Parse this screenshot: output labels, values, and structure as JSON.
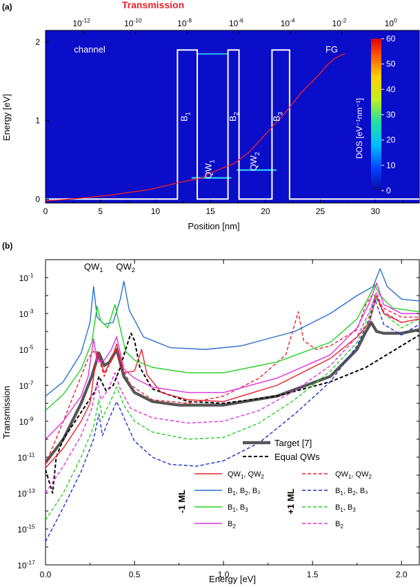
{
  "chart_data": [
    {
      "panel": "(a)",
      "type": "heatmap",
      "title": "Transmission",
      "xlabel": "Position [nm]",
      "ylabel": "Energy [eV]",
      "xlim": [
        0,
        34
      ],
      "ylim": [
        -0.05,
        2.15
      ],
      "x_ticks": [
        "0",
        "5",
        "10",
        "15",
        "20",
        "25",
        "30"
      ],
      "y_ticks": [
        "0",
        "1",
        "2"
      ],
      "top_axis_ticks": [
        {
          "base": "10",
          "exp": "-12"
        },
        {
          "base": "10",
          "exp": "-10"
        },
        {
          "base": "10",
          "exp": "-8"
        },
        {
          "base": "10",
          "exp": "-6"
        },
        {
          "base": "10",
          "exp": "-4"
        },
        {
          "base": "10",
          "exp": "-2"
        },
        {
          "base": "10",
          "exp": "0"
        }
      ],
      "top_axis_log_range": [
        -13.5,
        1
      ],
      "colorbar": {
        "label": "DOS [eV⁻¹nm⁻¹]",
        "min": 0,
        "max": 60,
        "ticks": [
          "0",
          "10",
          "20",
          "30",
          "40",
          "50",
          "60"
        ],
        "colors": [
          "#0a0aa0",
          "#0040ff",
          "#00c0ff",
          "#20e0a0",
          "#c0f020",
          "#ffd000",
          "#ff6000",
          "#e00000"
        ]
      },
      "region_labels": {
        "left": "channel",
        "right": "FG"
      },
      "band_profile": {
        "x": [
          0,
          12,
          12,
          13.8,
          13.8,
          16.6,
          16.6,
          17.6,
          17.6,
          20.6,
          20.6,
          22.2,
          22.2,
          34
        ],
        "energy": [
          0,
          0,
          1.9,
          1.9,
          0,
          0,
          1.9,
          1.9,
          0,
          0,
          1.9,
          1.9,
          0,
          0
        ]
      },
      "barriers": [
        {
          "label": "B",
          "sub": "1",
          "x": 12.9,
          "energy": 1.05
        },
        {
          "label": "B",
          "sub": "2",
          "x": 17.3,
          "energy": 1.05
        },
        {
          "label": "B",
          "sub": "3",
          "x": 21.3,
          "energy": 1.05
        }
      ],
      "wells": [
        {
          "label": "QW",
          "sub": "1",
          "x": 15.1,
          "energy": 0.38,
          "level": 0.27
        },
        {
          "label": "QW",
          "sub": "2",
          "x": 19.2,
          "energy": 0.48,
          "level": 0.37
        }
      ],
      "transmission_curve": {
        "color": "#e8202c",
        "log10_T": [
          -13.8,
          -12.5,
          -11,
          -9.5,
          -8.2,
          -7.4,
          -7.2,
          -6.6,
          -6.2,
          -5.6,
          -4.9,
          -4.2,
          -3.6,
          -2.9,
          -2.6,
          -2.3,
          -2.0,
          -1.9
        ],
        "energy": [
          -0.03,
          0.0,
          0.05,
          0.12,
          0.22,
          0.27,
          0.32,
          0.4,
          0.45,
          0.6,
          0.85,
          1.1,
          1.35,
          1.58,
          1.7,
          1.79,
          1.84,
          1.85
        ]
      }
    },
    {
      "panel": "(b)",
      "type": "line",
      "xlabel": "Energy [eV]",
      "ylabel": "Transmission",
      "xlim": [
        0,
        2.1
      ],
      "ylim_log10": [
        -17,
        0
      ],
      "x_ticks": [
        "0.0",
        "0.5",
        "1.0",
        "1.5",
        "2.0"
      ],
      "y_ticks": [
        {
          "base": "10",
          "exp": "-1"
        },
        {
          "base": "10",
          "exp": "-3"
        },
        {
          "base": "10",
          "exp": "-5"
        },
        {
          "base": "10",
          "exp": "-7"
        },
        {
          "base": "10",
          "exp": "-9"
        },
        {
          "base": "10",
          "exp": "-11"
        },
        {
          "base": "10",
          "exp": "-13"
        },
        {
          "base": "10",
          "exp": "-15"
        },
        {
          "base": "10",
          "exp": "-17"
        }
      ],
      "peak_labels": [
        {
          "label": "QW",
          "sub": "1",
          "x": 0.27,
          "log10_T": -0.55
        },
        {
          "label": "QW",
          "sub": "2",
          "x": 0.45,
          "log10_T": -0.55
        }
      ],
      "group_labels": {
        "solid": "-1 ML",
        "dashed": "+1 ML"
      },
      "legend_entries": [
        {
          "text": "QW",
          "sub1": "1",
          "sep": ", QW",
          "sub2": "2",
          "rest": ""
        },
        {
          "text": "B",
          "sub1": "1",
          "sep": ", B",
          "sub2": "2",
          "rest": ", B₃"
        },
        {
          "text": "B",
          "sub1": "1",
          "sep": ", B",
          "sub2": "3",
          "rest": ""
        },
        {
          "text": "B",
          "sub1": "2",
          "sep": "",
          "sub2": "",
          "rest": ""
        }
      ],
      "series": [
        {
          "name": "Target [7]",
          "style": "solid",
          "color": "#555555",
          "width": 4.2,
          "x": [
            0.0,
            0.1,
            0.2,
            0.26,
            0.3,
            0.33,
            0.36,
            0.4,
            0.44,
            0.5,
            0.6,
            0.75,
            1.0,
            1.3,
            1.6,
            1.75,
            1.8,
            1.83,
            1.86,
            1.9,
            2.0,
            2.1
          ],
          "log10_T": [
            -11.3,
            -10,
            -8,
            -6.5,
            -5.2,
            -5.9,
            -5.7,
            -5.0,
            -6.5,
            -7.4,
            -7.9,
            -8.1,
            -8.1,
            -7.6,
            -6.5,
            -5,
            -4,
            -3.5,
            -4,
            -4.1,
            -4.1,
            -3.9
          ]
        },
        {
          "name": "Equal QWs",
          "style": "dashed",
          "color": "#000000",
          "width": 2.0,
          "x": [
            0.0,
            0.04,
            0.06,
            0.1,
            0.2,
            0.28,
            0.3,
            0.34,
            0.38,
            0.42,
            0.45,
            0.48,
            0.5,
            0.53,
            0.6,
            0.8,
            1.0,
            1.3,
            1.6,
            1.8,
            2.0,
            2.1
          ],
          "log10_T": [
            -11.7,
            -13,
            -11,
            -10,
            -8.5,
            -7.3,
            -6.5,
            -7.3,
            -7.0,
            -6.0,
            -5.0,
            -4.1,
            -4.5,
            -6,
            -7.2,
            -7.9,
            -8.0,
            -7.6,
            -6.8,
            -6.0,
            -4.8,
            -4.2
          ]
        },
        {
          "name": "QW₁, QW₂ (-1 ML)",
          "style": "solid",
          "color": "#e8202c",
          "width": 1.4,
          "x": [
            0.0,
            0.1,
            0.2,
            0.25,
            0.29,
            0.33,
            0.37,
            0.4,
            0.44,
            0.5,
            0.54,
            0.57,
            0.65,
            0.8,
            1.0,
            1.3,
            1.6,
            1.75,
            1.82,
            1.86,
            1.9,
            2.0,
            2.1
          ],
          "log10_T": [
            -11.6,
            -10.5,
            -9,
            -8,
            -5.1,
            -6.3,
            -5.6,
            -4.7,
            -6.3,
            -6.2,
            -5.0,
            -6.4,
            -7.4,
            -7.8,
            -7.9,
            -7.0,
            -5.5,
            -4.3,
            -3.5,
            -2.0,
            -3.0,
            -3.5,
            -3.3
          ]
        },
        {
          "name": "B₁, B₂, B₃ (-1 ML)",
          "style": "solid",
          "color": "#2a6fd0",
          "width": 1.4,
          "x": [
            0.0,
            0.1,
            0.2,
            0.25,
            0.27,
            0.29,
            0.33,
            0.38,
            0.42,
            0.44,
            0.47,
            0.55,
            0.7,
            0.9,
            1.1,
            1.4,
            1.6,
            1.75,
            1.84,
            1.88,
            1.92,
            2.0,
            2.1
          ],
          "log10_T": [
            -7.6,
            -6.8,
            -5.2,
            -3.5,
            -1.5,
            -3.2,
            -3.6,
            -3.5,
            -2.2,
            -1.2,
            -2.8,
            -4.3,
            -4.9,
            -5.0,
            -4.8,
            -4.0,
            -3.0,
            -2.0,
            -1.5,
            -0.5,
            -1.5,
            -2.2,
            -2.3
          ]
        },
        {
          "name": "B₁, B₃ (-1 ML)",
          "style": "solid",
          "color": "#22d022",
          "width": 1.4,
          "x": [
            0.0,
            0.1,
            0.2,
            0.26,
            0.29,
            0.31,
            0.35,
            0.39,
            0.41,
            0.45,
            0.5,
            0.6,
            0.8,
            1.0,
            1.3,
            1.6,
            1.75,
            1.82,
            1.85,
            1.88,
            1.95,
            2.1
          ],
          "log10_T": [
            -8.4,
            -7.5,
            -6.1,
            -4.6,
            -2.6,
            -3.4,
            -3.8,
            -2.5,
            -3.4,
            -5.1,
            -5.6,
            -6.0,
            -6.3,
            -6.3,
            -5.7,
            -4.6,
            -3.3,
            -2.0,
            -1.4,
            -2.0,
            -2.7,
            -2.9
          ]
        },
        {
          "name": "B₂ (-1 ML)",
          "style": "solid",
          "color": "#e030e0",
          "width": 1.4,
          "x": [
            0.0,
            0.1,
            0.2,
            0.24,
            0.27,
            0.29,
            0.33,
            0.37,
            0.4,
            0.44,
            0.5,
            0.6,
            0.8,
            1.0,
            1.3,
            1.6,
            1.75,
            1.82,
            1.86,
            1.9,
            2.0,
            2.1
          ],
          "log10_T": [
            -10.0,
            -9.0,
            -7.6,
            -6.5,
            -4.4,
            -5.7,
            -5.6,
            -5.0,
            -4.3,
            -6.1,
            -6.6,
            -7.1,
            -7.4,
            -7.4,
            -6.6,
            -5.3,
            -3.8,
            -2.4,
            -1.3,
            -2.5,
            -3.0,
            -3.0
          ]
        },
        {
          "name": "QW₁, QW₂ (+1 ML)",
          "style": "dashed",
          "color": "#e8202c",
          "width": 1.4,
          "x": [
            0.0,
            0.1,
            0.2,
            0.24,
            0.27,
            0.3,
            0.33,
            0.38,
            0.4,
            0.42,
            0.48,
            0.6,
            0.8,
            1.0,
            1.2,
            1.35,
            1.42,
            1.45,
            1.52,
            1.6,
            1.75,
            1.8,
            1.84,
            1.9,
            2.0,
            2.1
          ],
          "log10_T": [
            -11.4,
            -9,
            -6.5,
            -5.5,
            -5.1,
            -5.5,
            -6.5,
            -5.3,
            -5.0,
            -5.8,
            -7,
            -7.8,
            -8.0,
            -7.6,
            -6.6,
            -5.3,
            -2.9,
            -4.5,
            -5.0,
            -4.8,
            -3.9,
            -2.5,
            -1.9,
            -2.7,
            -3.2,
            -3.2
          ]
        },
        {
          "name": "B₁, B₂, B₃ (+1 ML)",
          "style": "dashed",
          "color": "#1a2ecc",
          "width": 1.4,
          "x": [
            0.0,
            0.1,
            0.2,
            0.27,
            0.3,
            0.32,
            0.36,
            0.4,
            0.44,
            0.5,
            0.6,
            0.7,
            0.85,
            1.0,
            1.2,
            1.4,
            1.6,
            1.75,
            1.82,
            1.85,
            1.9,
            2.0,
            2.1
          ],
          "log10_T": [
            -15.7,
            -13.8,
            -11.8,
            -10.0,
            -8.6,
            -9.8,
            -8.8,
            -7.9,
            -8.8,
            -10.1,
            -11.0,
            -11.4,
            -11.5,
            -11.2,
            -10.2,
            -8.6,
            -6.8,
            -4.8,
            -3.3,
            -2.2,
            -3.6,
            -4.2,
            -3.6
          ]
        },
        {
          "name": "B₁, B₃ (+1 ML)",
          "style": "dashed",
          "color": "#22d022",
          "width": 1.4,
          "x": [
            0.0,
            0.1,
            0.2,
            0.27,
            0.3,
            0.32,
            0.36,
            0.4,
            0.44,
            0.5,
            0.6,
            0.8,
            1.0,
            1.2,
            1.4,
            1.6,
            1.75,
            1.82,
            1.85,
            1.9,
            2.0,
            2.1
          ],
          "log10_T": [
            -14.5,
            -13.0,
            -11.0,
            -9.3,
            -7.8,
            -8.8,
            -8.0,
            -7.1,
            -8.1,
            -9.0,
            -9.6,
            -10.0,
            -9.9,
            -9.1,
            -7.8,
            -6.2,
            -4.6,
            -3.1,
            -2.0,
            -3.0,
            -3.8,
            -3.3
          ]
        },
        {
          "name": "B₂ (+1 ML)",
          "style": "dashed",
          "color": "#e030e0",
          "width": 1.4,
          "x": [
            0.0,
            0.1,
            0.2,
            0.26,
            0.29,
            0.31,
            0.35,
            0.39,
            0.42,
            0.48,
            0.6,
            0.8,
            1.0,
            1.2,
            1.4,
            1.6,
            1.75,
            1.82,
            1.86,
            1.9,
            2.0,
            2.1
          ],
          "log10_T": [
            -13.0,
            -11.5,
            -9.8,
            -8.3,
            -6.8,
            -7.8,
            -7.3,
            -6.3,
            -7.2,
            -8.3,
            -8.8,
            -9.1,
            -9.0,
            -8.4,
            -7.3,
            -5.9,
            -4.3,
            -2.9,
            -1.8,
            -2.9,
            -3.5,
            -3.3
          ]
        }
      ]
    }
  ]
}
